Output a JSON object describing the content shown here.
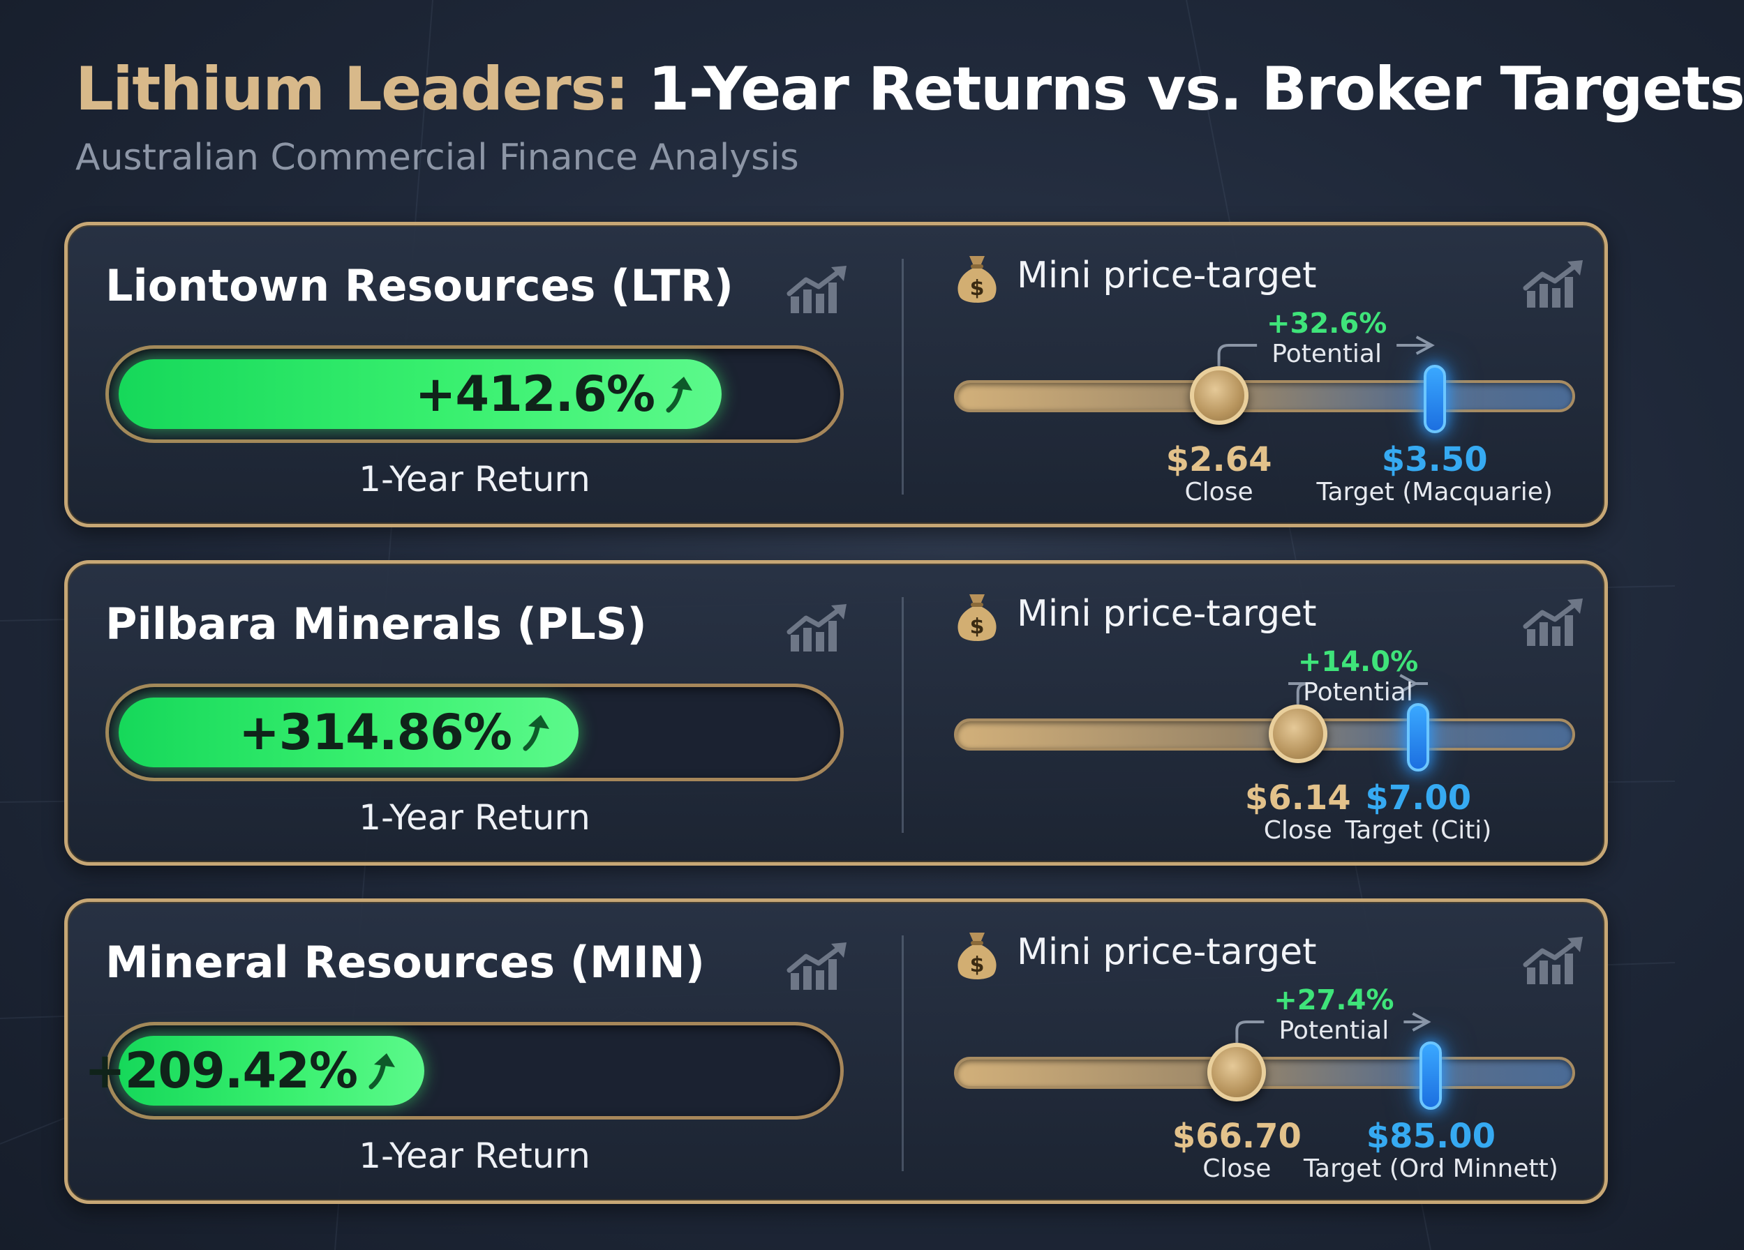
{
  "header": {
    "title_gold": "Lithium Leaders:",
    "title_rest": "1-Year Returns vs. Broker Targets",
    "subtitle": "Australian Commercial Finance Analysis"
  },
  "common": {
    "return_label": "1-Year Return",
    "mini_title": "Mini price-target",
    "potential_label": "Potential",
    "close_label": "Close"
  },
  "colors": {
    "gold": "#d8b98a",
    "return_green": "#3ff071",
    "target_blue": "#36aaf2",
    "background": "#1f2839"
  },
  "icons": [
    "trend-chart-icon",
    "money-bag-icon",
    "up-arrow-icon"
  ],
  "cards": [
    {
      "name": "Liontown Resources (LTR)",
      "return_text": "+412.6%",
      "close_text": "$2.64",
      "target_text": "$3.50",
      "target_label": "Target (Macquarie)",
      "potential_text": "+32.6%"
    },
    {
      "name": "Pilbara Minerals (PLS)",
      "return_text": "+314.86%",
      "close_text": "$6.14",
      "target_text": "$7.00",
      "target_label": "Target (Citi)",
      "potential_text": "+14.0%"
    },
    {
      "name": "Mineral Resources (MIN)",
      "return_text": "+209.42%",
      "close_text": "$66.70",
      "target_text": "$85.00",
      "target_label": "Target (Ord Minnett)",
      "potential_text": "+27.4%"
    }
  ],
  "chart_data": {
    "type": "bar",
    "title": "Lithium Leaders: 1-Year Returns vs. Broker Targets",
    "subtitle": "Australian Commercial Finance Analysis",
    "categories": [
      "Liontown Resources (LTR)",
      "Pilbara Minerals (PLS)",
      "Mineral Resources (MIN)"
    ],
    "series": [
      {
        "name": "1-Year Return",
        "values": [
          412.6,
          314.86,
          209.42
        ]
      }
    ],
    "close": [
      2.64,
      6.14,
      66.7
    ],
    "target": [
      3.5,
      7.0,
      85.0
    ],
    "broker": [
      "Macquarie",
      "Citi",
      "Ord Minnett"
    ],
    "potential_pct": [
      32.6,
      14.0,
      27.4
    ]
  }
}
